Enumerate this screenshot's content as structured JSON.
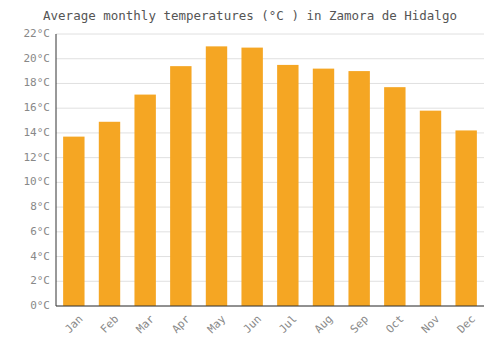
{
  "chart_data": {
    "type": "bar",
    "title": "Average monthly temperatures (°C ) in Zamora de Hidalgo",
    "categories": [
      "Jan",
      "Feb",
      "Mar",
      "Apr",
      "May",
      "Jun",
      "Jul",
      "Aug",
      "Sep",
      "Oct",
      "Nov",
      "Dec"
    ],
    "values": [
      13.7,
      14.9,
      17.1,
      19.4,
      21.0,
      20.9,
      19.5,
      19.2,
      19.0,
      17.7,
      15.8,
      14.2
    ],
    "color": "#F5A623",
    "ylim": [
      0,
      22
    ],
    "yticks": [
      {
        "value": 0,
        "label": "0°C"
      },
      {
        "value": 2,
        "label": "2°C"
      },
      {
        "value": 4,
        "label": "4°C"
      },
      {
        "value": 6,
        "label": "6°C"
      },
      {
        "value": 8,
        "label": "8°C"
      },
      {
        "value": 10,
        "label": "10°C"
      },
      {
        "value": 12,
        "label": "12°C"
      },
      {
        "value": 14,
        "label": "14°C"
      },
      {
        "value": 16,
        "label": "16°C"
      },
      {
        "value": 18,
        "label": "18°C"
      },
      {
        "value": 20,
        "label": "20°C"
      },
      {
        "value": 22,
        "label": "22°C"
      }
    ],
    "grid": true
  }
}
